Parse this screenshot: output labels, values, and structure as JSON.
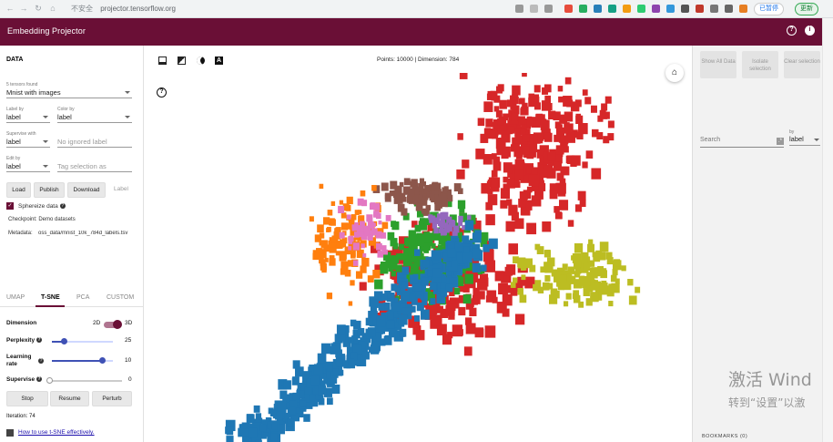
{
  "browser": {
    "insecure_label": "不安全",
    "url": "projector.tensorflow.org",
    "paused_label": "已暂停",
    "update_label": "更新"
  },
  "app": {
    "title": "Embedding Projector"
  },
  "data_panel": {
    "section_title": "DATA",
    "tensors_label": "5 tensors found",
    "tensors_value": "Mnist with images",
    "label_by_label": "Label by",
    "label_by_value": "label",
    "color_by_label": "Color by",
    "color_by_value": "label",
    "supervise_with_label": "Supervise with",
    "supervise_with_value": "label",
    "ignored_label_placeholder": "No ignored label",
    "edit_by_label": "Edit by",
    "edit_by_value": "label",
    "tag_selection_placeholder": "Tag selection as",
    "buttons": {
      "load": "Load",
      "publish": "Publish",
      "download": "Download",
      "label": "Label"
    },
    "sphereize_label": "Sphereize data",
    "checkpoint": "Checkpoint:  Demo datasets",
    "metadata_label": "Metadata:",
    "metadata_value": "oss_data/mnist_10k_784d_labels.tsv"
  },
  "projection_tabs": [
    {
      "label": "UMAP",
      "active": false
    },
    {
      "label": "T-SNE",
      "active": true
    },
    {
      "label": "PCA",
      "active": false
    },
    {
      "label": "CUSTOM",
      "active": false
    }
  ],
  "tsne": {
    "dimension_label": "Dimension",
    "dim_2d": "2D",
    "dim_3d": "3D",
    "perplexity_label": "Perplexity",
    "perplexity_value": "25",
    "perplexity_fraction": 0.2,
    "learning_rate_label": "Learning rate",
    "learning_rate_value": "10",
    "learning_rate_fraction": 0.82,
    "supervise_label": "Supervise",
    "supervise_value": "0",
    "supervise_fraction": 0,
    "stop": "Stop",
    "resume": "Resume",
    "perturb": "Perturb",
    "iteration": "Iteration: 74",
    "help_link": "How to use t-SNE effectively."
  },
  "toolbar": {
    "points_info": "Points: 10000 | Dimension: 784"
  },
  "right_panel": {
    "show_all": "Show All Data",
    "isolate": "Isolate selection",
    "clear": "Clear selection",
    "search_placeholder": "Search",
    "by_label": "by",
    "by_value": "label",
    "bottom_label": "BOOKMARKS (0)"
  },
  "colors": {
    "brand": "#6a0f36",
    "cluster_blue": "#1f77b4",
    "cluster_red": "#d62728",
    "cluster_green": "#2ca02c",
    "cluster_orange": "#ff7f0e",
    "cluster_brown": "#8c564b",
    "cluster_pink": "#e377c2",
    "cluster_olive": "#bcbd22",
    "cluster_purple": "#9467bd"
  },
  "watermark": {
    "line1": "激活 Wind",
    "line2": "转到“设置”以激"
  }
}
